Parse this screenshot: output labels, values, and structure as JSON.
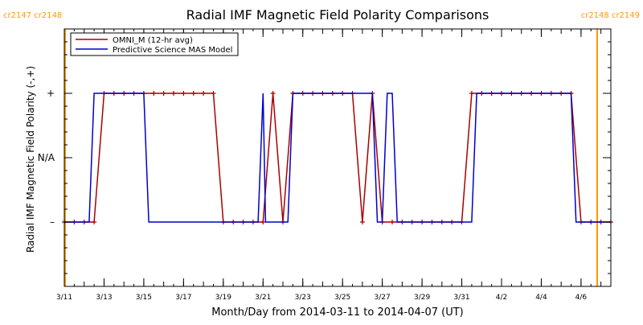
{
  "chart_data": {
    "type": "line",
    "title": "Radial IMF Magnetic Field Polarity Comparisons",
    "xlabel": "Month/Day from 2014-03-11 to 2014-04-07 (UT)",
    "ylabel": "Radial IMF Magnetic Field Polarity (-,+)",
    "xlim": [
      "2014-03-11T00:00",
      "2014-04-07T12:00"
    ],
    "ylim": [
      -2,
      2
    ],
    "x_tick_labels": [
      "3/11",
      "3/13",
      "3/15",
      "3/17",
      "3/19",
      "3/21",
      "3/23",
      "3/25",
      "3/27",
      "3/29",
      "3/31",
      "4/2",
      "4/4",
      "4/6"
    ],
    "y_tick_labels": [
      "+",
      "N/A",
      "–"
    ],
    "y_tick_values": [
      1,
      0,
      -1
    ],
    "legend_position": "top-left",
    "carrington_markers": [
      {
        "x": "2014-03-11T00:00",
        "label": "cr2147 cr2148",
        "side": "left",
        "color": "#ff9900"
      },
      {
        "x": "2014-04-07T12:00",
        "label": "cr2148 cr2149",
        "side": "right",
        "color": "#ff9900"
      }
    ],
    "series": [
      {
        "name": "OMNI_M (12-hr avg)",
        "color": "#aa0000",
        "markers": true,
        "points": [
          [
            "2014-03-11T00:00",
            -1
          ],
          [
            "2014-03-11T12:00",
            -1
          ],
          [
            "2014-03-12T00:00",
            -1
          ],
          [
            "2014-03-12T12:00",
            -1
          ],
          [
            "2014-03-13T00:00",
            1
          ],
          [
            "2014-03-13T12:00",
            1
          ],
          [
            "2014-03-14T00:00",
            1
          ],
          [
            "2014-03-14T12:00",
            1
          ],
          [
            "2014-03-15T00:00",
            1
          ],
          [
            "2014-03-15T12:00",
            1
          ],
          [
            "2014-03-16T00:00",
            1
          ],
          [
            "2014-03-16T12:00",
            1
          ],
          [
            "2014-03-17T00:00",
            1
          ],
          [
            "2014-03-17T12:00",
            1
          ],
          [
            "2014-03-18T00:00",
            1
          ],
          [
            "2014-03-18T12:00",
            1
          ],
          [
            "2014-03-19T00:00",
            -1
          ],
          [
            "2014-03-19T12:00",
            -1
          ],
          [
            "2014-03-20T00:00",
            -1
          ],
          [
            "2014-03-20T12:00",
            -1
          ],
          [
            "2014-03-21T00:00",
            -1
          ],
          [
            "2014-03-21T12:00",
            1
          ],
          [
            "2014-03-22T00:00",
            -1
          ],
          [
            "2014-03-22T12:00",
            1
          ],
          [
            "2014-03-23T00:00",
            1
          ],
          [
            "2014-03-23T12:00",
            1
          ],
          [
            "2014-03-24T00:00",
            1
          ],
          [
            "2014-03-24T12:00",
            1
          ],
          [
            "2014-03-25T00:00",
            1
          ],
          [
            "2014-03-25T12:00",
            1
          ],
          [
            "2014-03-26T00:00",
            -1
          ],
          [
            "2014-03-26T12:00",
            1
          ],
          [
            "2014-03-27T00:00",
            -1
          ],
          [
            "2014-03-27T12:00",
            -1
          ],
          [
            "2014-03-28T00:00",
            -1
          ],
          [
            "2014-03-28T12:00",
            -1
          ],
          [
            "2014-03-29T00:00",
            -1
          ],
          [
            "2014-03-29T12:00",
            -1
          ],
          [
            "2014-03-30T00:00",
            -1
          ],
          [
            "2014-03-30T12:00",
            -1
          ],
          [
            "2014-03-31T00:00",
            -1
          ],
          [
            "2014-03-31T12:00",
            1
          ],
          [
            "2014-04-01T00:00",
            1
          ],
          [
            "2014-04-01T12:00",
            1
          ],
          [
            "2014-04-02T00:00",
            1
          ],
          [
            "2014-04-02T12:00",
            1
          ],
          [
            "2014-04-03T00:00",
            1
          ],
          [
            "2014-04-03T12:00",
            1
          ],
          [
            "2014-04-04T00:00",
            1
          ],
          [
            "2014-04-04T12:00",
            1
          ],
          [
            "2014-04-05T00:00",
            1
          ],
          [
            "2014-04-05T12:00",
            1
          ],
          [
            "2014-04-06T00:00",
            -1
          ],
          [
            "2014-04-06T12:00",
            -1
          ],
          [
            "2014-04-07T00:00",
            -1
          ],
          [
            "2014-04-07T12:00",
            -1
          ]
        ]
      },
      {
        "name": "Predictive Science MAS Model",
        "color": "#0000cc",
        "markers": false,
        "points": [
          [
            "2014-03-11T00:00",
            -1
          ],
          [
            "2014-03-12T06:00",
            -1
          ],
          [
            "2014-03-12T12:00",
            1
          ],
          [
            "2014-03-15T00:00",
            1
          ],
          [
            "2014-03-15T06:00",
            -1
          ],
          [
            "2014-03-20T18:00",
            -1
          ],
          [
            "2014-03-21T00:00",
            1
          ],
          [
            "2014-03-21T03:00",
            -1
          ],
          [
            "2014-03-22T06:00",
            -1
          ],
          [
            "2014-03-22T12:00",
            1
          ],
          [
            "2014-03-26T12:00",
            1
          ],
          [
            "2014-03-26T18:00",
            -1
          ],
          [
            "2014-03-27T00:00",
            -1
          ],
          [
            "2014-03-27T06:00",
            1
          ],
          [
            "2014-03-27T12:00",
            1
          ],
          [
            "2014-03-27T18:00",
            -1
          ],
          [
            "2014-03-31T12:00",
            -1
          ],
          [
            "2014-03-31T18:00",
            1
          ],
          [
            "2014-04-05T12:00",
            1
          ],
          [
            "2014-04-05T18:00",
            -1
          ],
          [
            "2014-04-07T12:00",
            -1
          ]
        ]
      }
    ]
  }
}
